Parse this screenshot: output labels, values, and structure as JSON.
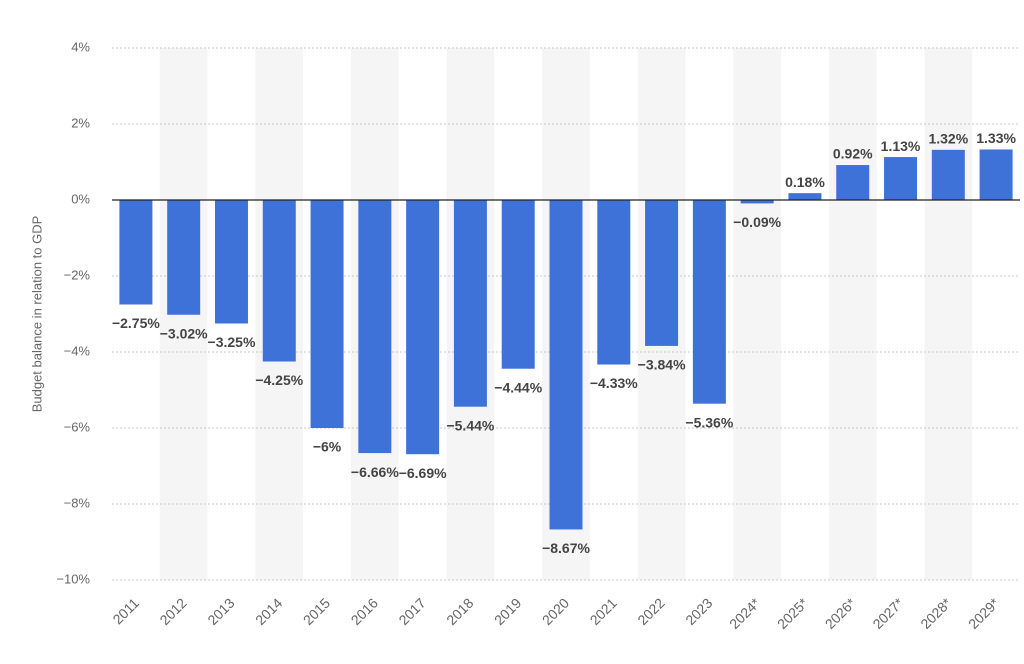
{
  "chart_data": {
    "type": "bar",
    "y_label": "Budget balance in relation to GDP",
    "categories": [
      "2011",
      "2012",
      "2013",
      "2014",
      "2015",
      "2016",
      "2017",
      "2018",
      "2019",
      "2020",
      "2021",
      "2022",
      "2023",
      "2024*",
      "2025*",
      "2026*",
      "2027*",
      "2028*",
      "2029*"
    ],
    "values": [
      -2.75,
      -3.02,
      -3.25,
      -4.25,
      -6,
      -6.66,
      -6.69,
      -5.44,
      -4.44,
      -8.67,
      -4.33,
      -3.84,
      -5.36,
      -0.09,
      0.18,
      0.92,
      1.13,
      1.32,
      1.33
    ],
    "value_labels": [
      "−2.75%",
      "−3.02%",
      "−3.25%",
      "−4.25%",
      "−6%",
      "−6.66%",
      "−6.69%",
      "−5.44%",
      "−4.44%",
      "−8.67%",
      "−4.33%",
      "−3.84%",
      "−5.36%",
      "−0.09%",
      "0.18%",
      "0.92%",
      "1.13%",
      "1.32%",
      "1.33%"
    ],
    "color": "#3f72d9",
    "ylim": [
      -10,
      4
    ],
    "yticks": [
      {
        "value": -10,
        "label": "−10%"
      },
      {
        "value": -8,
        "label": "−8%"
      },
      {
        "value": -6,
        "label": "−6%"
      },
      {
        "value": -4,
        "label": "−4%"
      },
      {
        "value": -2,
        "label": "−2%"
      },
      {
        "value": 0,
        "label": "0%"
      },
      {
        "value": 2,
        "label": "2%"
      },
      {
        "value": 4,
        "label": "4%"
      }
    ],
    "grid": true
  }
}
